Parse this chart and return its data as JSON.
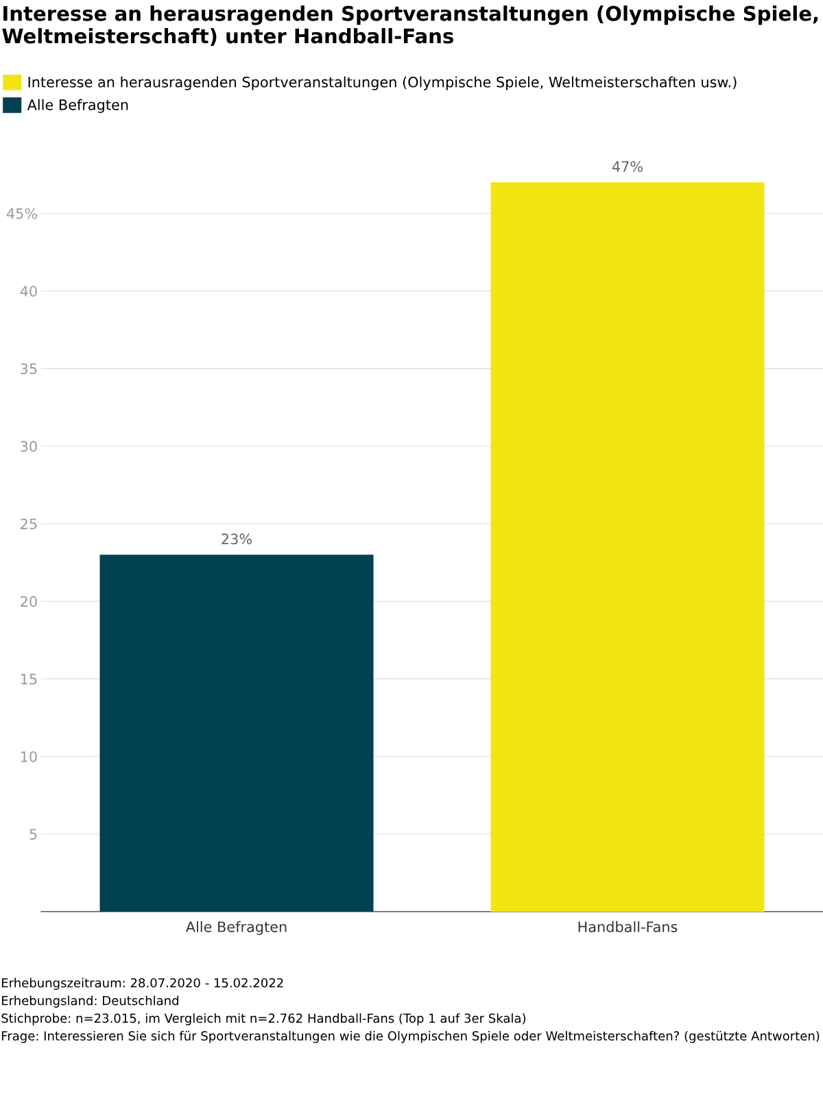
{
  "chart_data": {
    "type": "bar",
    "title": "Interesse an herausragenden Sportveranstaltungen (Olympische Spiele, Weltmeisterschaft) unter Handball-Fans",
    "categories": [
      "Alle Befragten",
      "Handball-Fans"
    ],
    "series": [
      {
        "name": "Interesse an herausragenden Sportveranstaltungen (Olympische Spiele, Weltmeisterschaften usw.)",
        "color": "#f3e511",
        "values": [
          null,
          47
        ],
        "value_labels": [
          null,
          "47%"
        ]
      },
      {
        "name": "Alle Befragten",
        "color": "#02414f",
        "values": [
          23,
          null
        ],
        "value_labels": [
          "23%",
          null
        ]
      }
    ],
    "ylim": [
      0,
      47
    ],
    "yticks": [
      5,
      10,
      15,
      20,
      25,
      30,
      35,
      40,
      {
        "value": 45,
        "label": "45%"
      }
    ],
    "grid": "y",
    "legend": "top left",
    "annotations": [
      "Erhebungszeitraum: 28.07.2020 - 15.02.2022",
      "Erhebungsland: Deutschland",
      "Stichprobe: n=23.015, im Vergleich mit n=2.762 Handball-Fans (Top 1 auf 3er Skala)",
      "Frage: Interessieren Sie sich für Sportveranstaltungen wie die Olympischen Spiele oder Weltmeisterschaften? (gestützte Antworten)"
    ]
  }
}
